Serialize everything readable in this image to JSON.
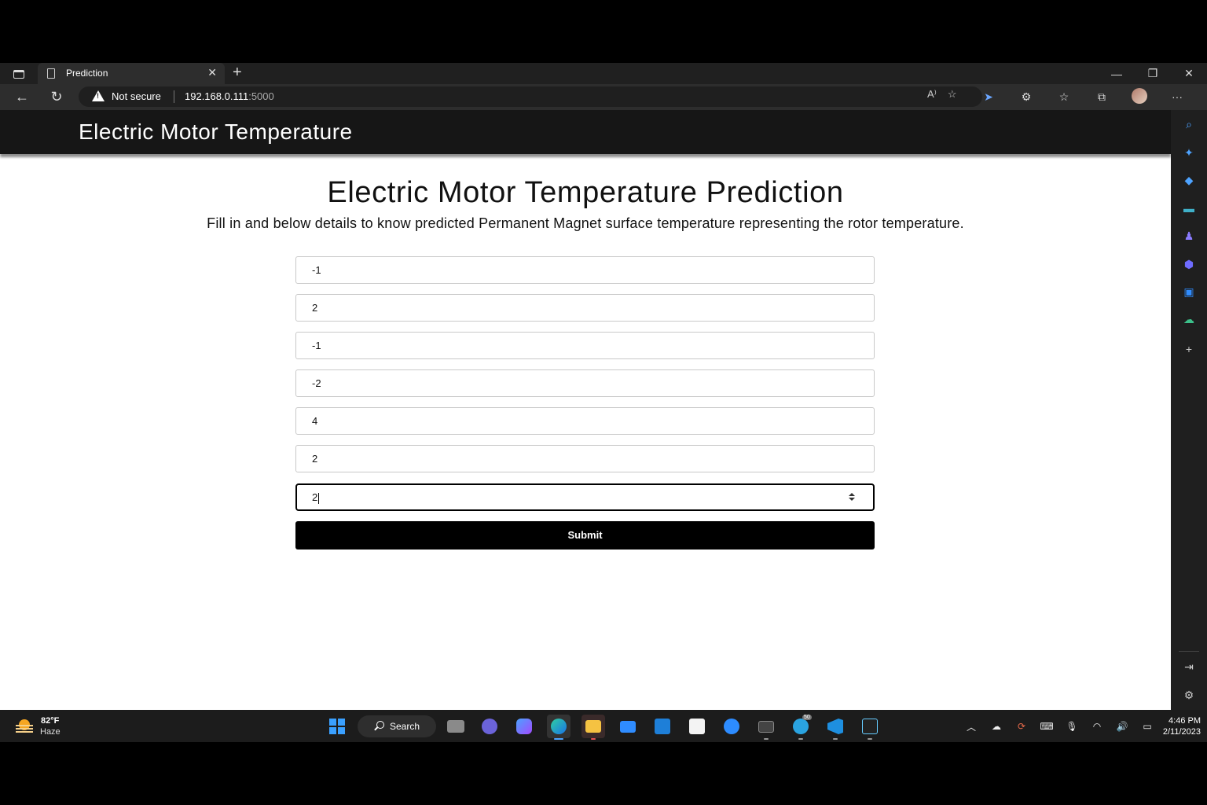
{
  "browser": {
    "tab_title": "Prediction",
    "tab_close": "✕",
    "new_tab": "+",
    "window_controls": [
      "—",
      "❐",
      "✕"
    ],
    "security_label": "Not secure",
    "url_host": "192.168.0.111",
    "url_port": ":5000",
    "read_aloud": "A⁾",
    "more_menu": "···"
  },
  "page": {
    "navbar_brand": "Electric Motor Temperature",
    "title": "Electric Motor Temperature Prediction",
    "subtitle": "Fill in and below details to know predicted Permanent Magnet surface temperature representing the rotor temperature.",
    "fields": [
      "-1",
      "2",
      "-1",
      "-2",
      "4",
      "2",
      "2"
    ],
    "submit_label": "Submit"
  },
  "taskbar": {
    "weather_temp": "82°F",
    "weather_condition": "Haze",
    "search_label": "Search",
    "telegram_badge": "50",
    "time": "4:46 PM",
    "date": "2/11/2023"
  },
  "colors": {
    "navbar_bg": "#161616",
    "submit_bg": "#000000",
    "edge_accent": "#4ea3ff"
  }
}
